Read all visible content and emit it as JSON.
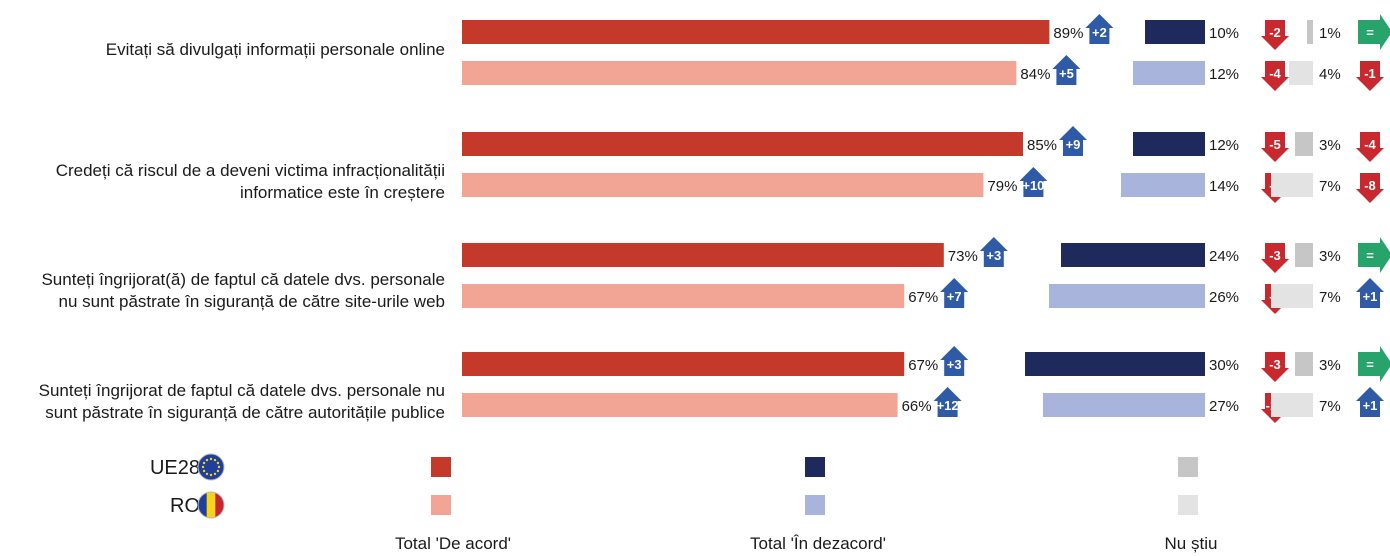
{
  "chart_data": {
    "type": "bar",
    "orientation": "horizontal",
    "categories": [
      [
        "Evitați să divulgați informații personale online"
      ],
      [
        "Credeți că riscul de a deveni victima infracționalității",
        "informatice este în creștere"
      ],
      [
        "Sunteți îngrijorat(ă) de faptul că datele dvs. personale",
        "nu sunt păstrate în siguranță de către site-urile web"
      ],
      [
        "Sunteți îngrijorat de faptul că datele dvs. personale nu",
        "sunt păstrate în siguranță de către autoritățile publice"
      ]
    ],
    "groups": [
      {
        "name": "UE28",
        "icon": "eu-flag-icon",
        "agree": {
          "values": [
            89,
            85,
            73,
            67
          ],
          "changes": [
            "+2",
            "+9",
            "+3",
            "+3"
          ]
        },
        "disagree": {
          "values": [
            10,
            12,
            24,
            30
          ],
          "changes": [
            "-2",
            "-5",
            "-3",
            "-3"
          ]
        },
        "dontknow": {
          "values": [
            1,
            3,
            3,
            3
          ],
          "changes": [
            "=",
            "-4",
            "=",
            "="
          ]
        }
      },
      {
        "name": "RO",
        "icon": "romania-flag-icon",
        "agree": {
          "values": [
            84,
            79,
            67,
            66
          ],
          "changes": [
            "+5",
            "+10",
            "+7",
            "+12"
          ]
        },
        "disagree": {
          "values": [
            12,
            14,
            26,
            27
          ],
          "changes": [
            "-4",
            "-2",
            "-8",
            "-13"
          ]
        },
        "dontknow": {
          "values": [
            4,
            7,
            7,
            7
          ],
          "changes": [
            "-1",
            "-8",
            "+1",
            "+1"
          ]
        }
      }
    ],
    "legend": {
      "groups": [
        "UE28",
        "RO"
      ],
      "series": [
        "Total 'De acord'",
        "Total 'În dezacord'",
        "Nu știu"
      ]
    },
    "value_suffix": "%",
    "colors": {
      "agree": [
        "#c4392a",
        "#f2a595"
      ],
      "disagree": [
        "#1f2a5c",
        "#a9b4dd"
      ],
      "dontknow": [
        "#c6c6c6",
        "#e3e3e3"
      ],
      "up": "#2e5aa6",
      "down": "#c8282e",
      "equal": "#27a36c"
    }
  }
}
